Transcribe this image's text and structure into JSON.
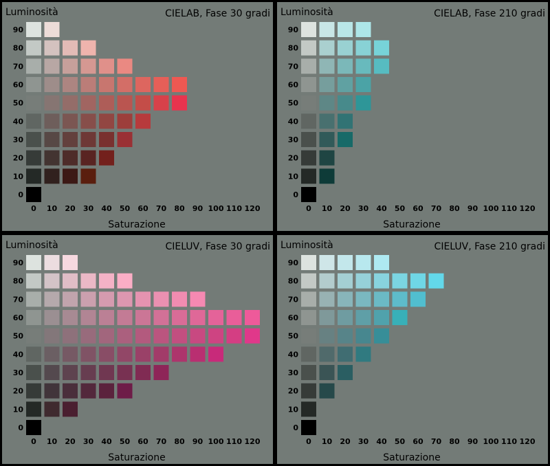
{
  "y_label": "Luminosità",
  "x_label": "Saturazione",
  "x_ticks": [
    "0",
    "10",
    "20",
    "30",
    "40",
    "50",
    "60",
    "70",
    "80",
    "90",
    "100",
    "110",
    "120"
  ],
  "y_ticks": [
    "90",
    "80",
    "70",
    "60",
    "50",
    "40",
    "30",
    "20",
    "10",
    "0"
  ],
  "panels": [
    {
      "title": "CIELAB, Fase 30 gradi",
      "rows": [
        [
          "#dde3df",
          "#eddcd8"
        ],
        [
          "#c3c9c5",
          "#d4c2bf",
          "#e3bbb6",
          "#efb4ad"
        ],
        [
          "#a8aeaa",
          "#b8a7a4",
          "#c7a09b",
          "#d59892",
          "#e0908a",
          "#ea8982"
        ],
        [
          "#8f9591",
          "#9e8d8a",
          "#ad8581",
          "#bb7d78",
          "#c8766f",
          "#d36e67",
          "#dd665f",
          "#e65f58",
          "#ee5852"
        ],
        [
          "#777d79",
          "#867572",
          "#946d69",
          "#a16561",
          "#ae5d58",
          "#ba5550",
          "#c44d48",
          "#d8414a",
          "#e8344e"
        ],
        [
          "#606662",
          "#6e5e5b",
          "#7b5652",
          "#874e4a",
          "#924642",
          "#9d3e3b",
          "#b73a3c"
        ],
        [
          "#4a504c",
          "#574845",
          "#63403d",
          "#6e3836",
          "#79302f",
          "#9a3034"
        ],
        [
          "#363b38",
          "#433431",
          "#4e2c29",
          "#592422",
          "#73201c"
        ],
        [
          "#242926",
          "#31211e",
          "#3c1915",
          "#5a1e0e"
        ],
        [
          "#000000"
        ]
      ]
    },
    {
      "title": "CIELAB, Fase 210 gradi",
      "rows": [
        [
          "#dde3df",
          "#c8e6e6",
          "#b9e6e7",
          "#ade6e8"
        ],
        [
          "#c3c9c5",
          "#aad0cf",
          "#99d1d2",
          "#88d2d5",
          "#77d3d8"
        ],
        [
          "#a8aeaa",
          "#8fb6b5",
          "#7bb8b9",
          "#68babd",
          "#57bcc1"
        ],
        [
          "#8f9591",
          "#769e9d",
          "#60a1a2",
          "#4ba3a6"
        ],
        [
          "#777d79",
          "#5e8786",
          "#478a8b",
          "#2e9698"
        ],
        [
          "#606662",
          "#48706f",
          "#317374"
        ],
        [
          "#4a504c",
          "#315a59",
          "#176a68"
        ],
        [
          "#363b38",
          "#1f4543"
        ],
        [
          "#242926",
          "#0e3b38"
        ],
        [
          "#000000"
        ]
      ]
    },
    {
      "title": "CIELUV, Fase 30 gradi",
      "rows": [
        [
          "#dde3df",
          "#ecdde0",
          "#f6d8df"
        ],
        [
          "#c3c9c5",
          "#d3c3c7",
          "#e0bdc6",
          "#ebb8c6",
          "#f4b2c6",
          "#fbaec6"
        ],
        [
          "#a8aeaa",
          "#b5a9ac",
          "#c1a4ad",
          "#cba0ae",
          "#d59baf",
          "#dd97b0",
          "#e593b0",
          "#eb90b1",
          "#f18cb1",
          "#f689b2"
        ],
        [
          "#8f9591",
          "#9b8f92",
          "#a78a93",
          "#b18594",
          "#bb8095",
          "#c37b95",
          "#cb7696",
          "#d27197",
          "#d96c97",
          "#df6898",
          "#e46399",
          "#e95e99",
          "#ee5a9a"
        ],
        [
          "#777d79",
          "#83777a",
          "#8e717b",
          "#986b7c",
          "#a2667d",
          "#ab607e",
          "#b35a7e",
          "#bb557f",
          "#c24f80",
          "#c84981",
          "#ce4482",
          "#d43e83",
          "#e0388a"
        ],
        [
          "#606662",
          "#6b5f63",
          "#765964",
          "#805365",
          "#894d66",
          "#924767",
          "#9a4168",
          "#a23b69",
          "#ad356c",
          "#b92f71",
          "#c82a7a"
        ],
        [
          "#4a504c",
          "#54494e",
          "#5e434f",
          "#673d50",
          "#703751",
          "#783152",
          "#802b53",
          "#8e2558"
        ],
        [
          "#363b38",
          "#41343a",
          "#4a2e3b",
          "#53283c",
          "#5b223d",
          "#6e1c48"
        ],
        [
          "#242926",
          "#3f2a2f",
          "#4a1f30"
        ],
        [
          "#000000"
        ]
      ]
    },
    {
      "title": "CIELUV, Fase 210 gradi",
      "rows": [
        [
          "#dde3df",
          "#cfe6e8",
          "#c3e7eb",
          "#b8e8ee",
          "#aee9f1"
        ],
        [
          "#c3c9c5",
          "#b3cccd",
          "#a4cfd3",
          "#96d1d9",
          "#88d3de",
          "#7bd5e2",
          "#6fd7e6",
          "#63d8ea"
        ],
        [
          "#a8aeaa",
          "#98b2b3",
          "#88b5ba",
          "#7ab8c0",
          "#6bbac5",
          "#5ebcca",
          "#51becf"
        ],
        [
          "#8f9591",
          "#7f999a",
          "#6f9ca1",
          "#5f9fa7",
          "#50a2ac",
          "#38b0b8"
        ],
        [
          "#777d79",
          "#678182",
          "#578489",
          "#47878f",
          "#378e98"
        ],
        [
          "#606662",
          "#506a6b",
          "#406d72",
          "#307a80"
        ],
        [
          "#4a504c",
          "#3a5455",
          "#2a5e62"
        ],
        [
          "#363b38",
          "#26494a"
        ],
        [
          "#242926"
        ],
        [
          "#000000"
        ]
      ]
    }
  ]
}
